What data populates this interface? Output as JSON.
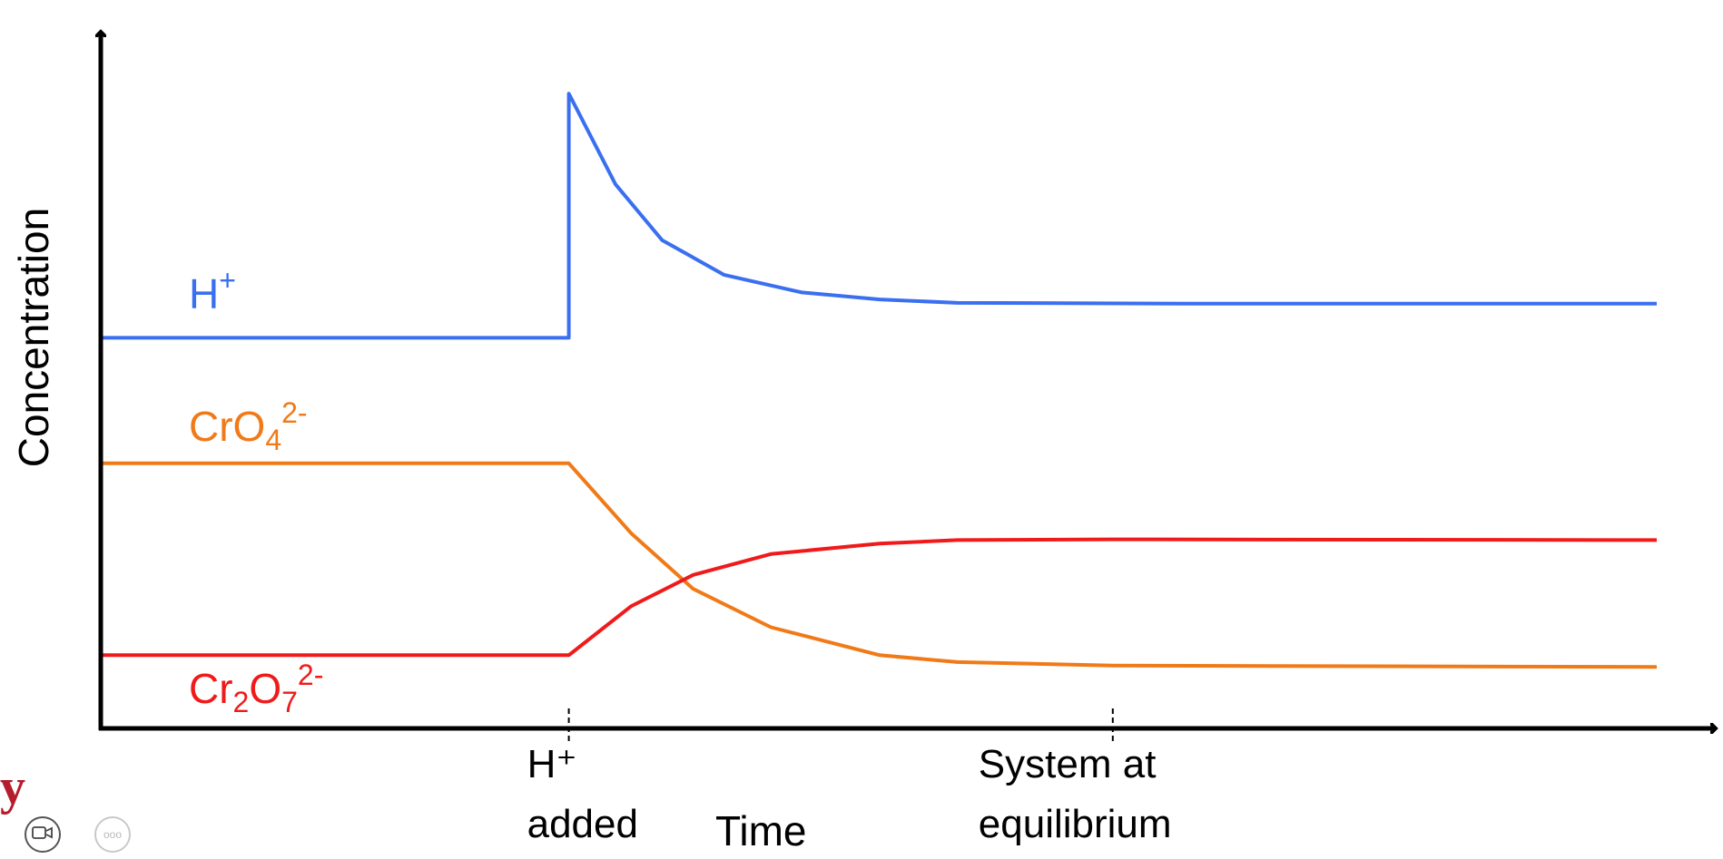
{
  "chart_data": {
    "type": "line",
    "title": "",
    "xlabel": "Time",
    "ylabel": "Concentration",
    "xlim": [
      0,
      10
    ],
    "ylim": [
      0,
      10
    ],
    "grid": false,
    "legend": "inline labels",
    "x_ticks": [
      {
        "x": 3.0,
        "lines": [
          "H⁺",
          "added"
        ]
      },
      {
        "x": 6.5,
        "lines": [
          "System at",
          "equilibrium"
        ]
      }
    ],
    "series": [
      {
        "name": "H",
        "label_sup": "+",
        "label_sub": "",
        "color": "#3a6ff0",
        "points": [
          [
            0,
            5.6
          ],
          [
            3.0,
            5.6
          ],
          [
            3.0,
            9.1
          ],
          [
            3.3,
            7.8
          ],
          [
            3.6,
            7.0
          ],
          [
            4.0,
            6.5
          ],
          [
            4.5,
            6.25
          ],
          [
            5.0,
            6.15
          ],
          [
            5.5,
            6.1
          ],
          [
            7.0,
            6.09
          ],
          [
            10.0,
            6.09
          ]
        ]
      },
      {
        "name": "CrO",
        "label_sub": "4",
        "label_sup": "2-",
        "color": "#f07a18",
        "points": [
          [
            0,
            3.8
          ],
          [
            3.0,
            3.8
          ],
          [
            3.4,
            2.8
          ],
          [
            3.8,
            2.0
          ],
          [
            4.3,
            1.45
          ],
          [
            5.0,
            1.05
          ],
          [
            5.5,
            0.95
          ],
          [
            6.5,
            0.9
          ],
          [
            10.0,
            0.88
          ]
        ]
      },
      {
        "name": "Cr",
        "label_sub": "2",
        "label_mid": "O",
        "label_sub2": "7",
        "label_sup": "2-",
        "color": "#f01a1a",
        "points": [
          [
            0,
            1.05
          ],
          [
            3.0,
            1.05
          ],
          [
            3.4,
            1.75
          ],
          [
            3.8,
            2.2
          ],
          [
            4.3,
            2.5
          ],
          [
            5.0,
            2.65
          ],
          [
            5.5,
            2.7
          ],
          [
            6.5,
            2.71
          ],
          [
            10.0,
            2.7
          ]
        ]
      }
    ]
  },
  "branding": {
    "logo_text": "y",
    "logo_color": "#b51c2c"
  },
  "toolbar": {
    "video_icon": "video-camera-icon",
    "more_icon": "more-dots-icon",
    "more_glyph": "ooo"
  }
}
